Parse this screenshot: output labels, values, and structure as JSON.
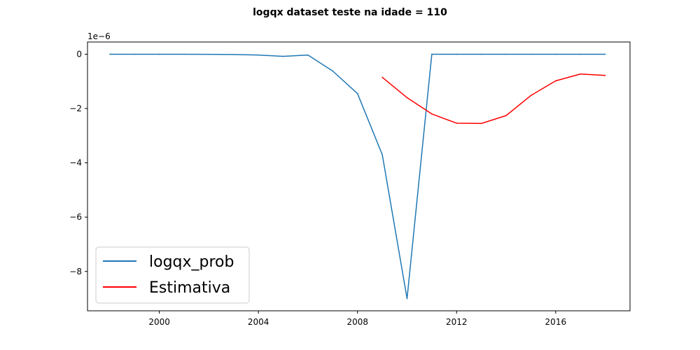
{
  "chart_data": {
    "type": "line",
    "title": "logqx dataset teste na idade = 110",
    "xlabel": "",
    "ylabel": "",
    "y_offset_label": "1e−6",
    "xlim": [
      1997.1,
      2019.0
    ],
    "ylim": [
      -9.45,
      0.45
    ],
    "x_ticks": [
      2000,
      2004,
      2008,
      2012,
      2016
    ],
    "x_tick_labels": [
      "2000",
      "2004",
      "2008",
      "2012",
      "2016"
    ],
    "y_ticks": [
      0,
      -2,
      -4,
      -6,
      -8
    ],
    "y_tick_labels": [
      "0",
      "−2",
      "−4",
      "−6",
      "−8"
    ],
    "grid": false,
    "legend_position": "lower-left",
    "series": [
      {
        "name": "logqx_prob",
        "color": "#1f77b4",
        "x": [
          1998,
          1999,
          2000,
          2001,
          2002,
          2003,
          2004,
          2005,
          2006,
          2007,
          2008,
          2009,
          2010,
          2011,
          2012,
          2013,
          2014,
          2015,
          2016,
          2017,
          2018
        ],
        "y": [
          0.0,
          0.0,
          0.0,
          0.0,
          -0.005,
          -0.01,
          -0.03,
          -0.08,
          -0.03,
          -0.62,
          -1.45,
          -3.7,
          -9.0,
          0.0,
          0.0,
          0.0,
          0.0,
          0.0,
          0.0,
          0.0,
          0.0
        ]
      },
      {
        "name": "Estimativa",
        "color": "#ff0000",
        "x": [
          2009,
          2010,
          2011,
          2012,
          2013,
          2014,
          2015,
          2016,
          2017,
          2018
        ],
        "y": [
          -0.85,
          -1.6,
          -2.2,
          -2.54,
          -2.55,
          -2.26,
          -1.52,
          -0.98,
          -0.73,
          -0.78
        ]
      }
    ]
  }
}
